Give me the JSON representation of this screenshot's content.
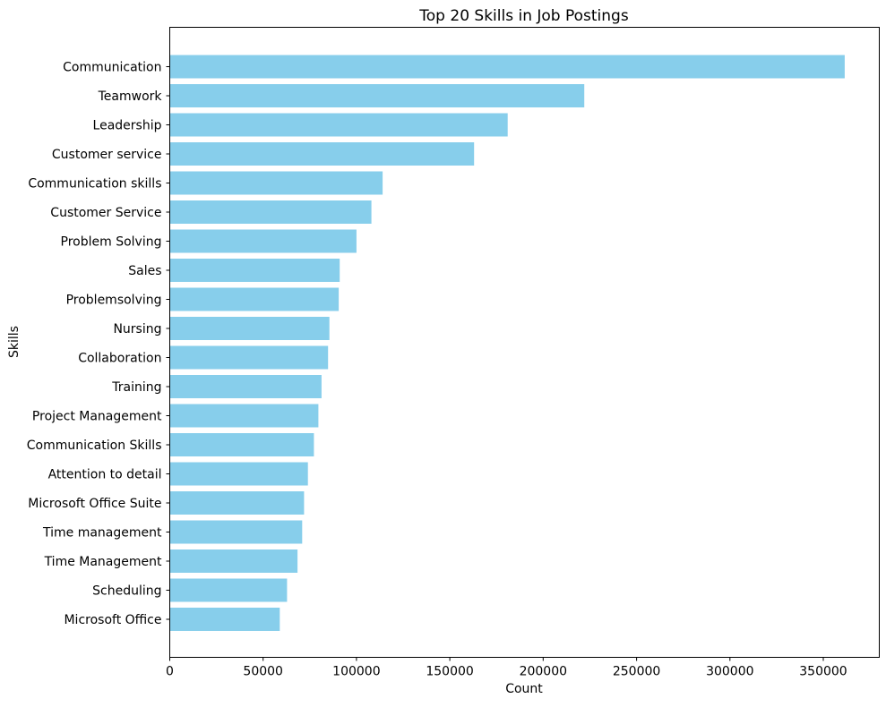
{
  "chart_data": {
    "type": "bar",
    "orientation": "horizontal",
    "title": "Top 20 Skills in Job Postings",
    "xlabel": "Count",
    "ylabel": "Skills",
    "categories": [
      "Communication",
      "Teamwork",
      "Leadership",
      "Customer service",
      "Communication skills",
      "Customer Service",
      "Problem Solving",
      "Sales",
      "Problemsolving",
      "Nursing",
      "Collaboration",
      "Training",
      "Project Management",
      "Communication Skills",
      "Attention to detail",
      "Microsoft Office Suite",
      "Time management",
      "Time Management",
      "Scheduling",
      "Microsoft Office"
    ],
    "values": [
      361500,
      222000,
      181000,
      163000,
      114000,
      108000,
      100000,
      91000,
      90500,
      85500,
      84800,
      81300,
      79600,
      77200,
      74000,
      71900,
      70900,
      68400,
      62800,
      58900
    ],
    "xlim": [
      0,
      380000
    ],
    "xticks": [
      0,
      50000,
      100000,
      150000,
      200000,
      250000,
      300000,
      350000
    ],
    "bar_color": "#87CEEB",
    "axis_color": "#000000",
    "grid": false,
    "legend": null
  }
}
